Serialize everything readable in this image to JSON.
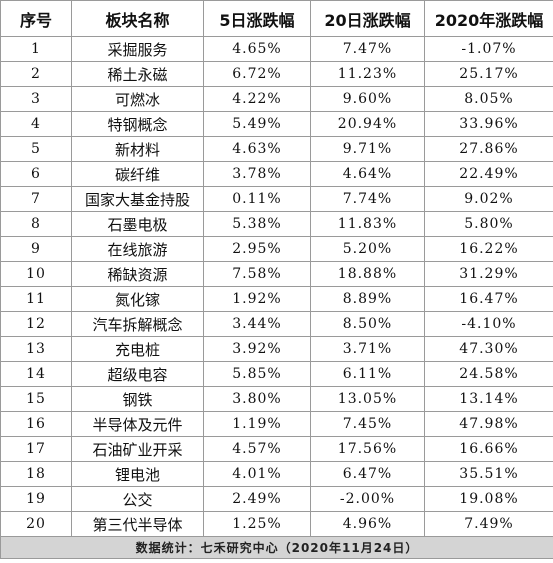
{
  "table": {
    "headers": [
      "序号",
      "板块名称",
      "5日涨跌幅",
      "20日涨跌幅",
      "2020年涨跌幅"
    ],
    "rows": [
      [
        "1",
        "采掘服务",
        "4.65%",
        "7.47%",
        "-1.07%"
      ],
      [
        "2",
        "稀土永磁",
        "6.72%",
        "11.23%",
        "25.17%"
      ],
      [
        "3",
        "可燃冰",
        "4.22%",
        "9.60%",
        "8.05%"
      ],
      [
        "4",
        "特钢概念",
        "5.49%",
        "20.94%",
        "33.96%"
      ],
      [
        "5",
        "新材料",
        "4.63%",
        "9.71%",
        "27.86%"
      ],
      [
        "6",
        "碳纤维",
        "3.78%",
        "4.64%",
        "22.49%"
      ],
      [
        "7",
        "国家大基金持股",
        "0.11%",
        "7.74%",
        "9.02%"
      ],
      [
        "8",
        "石墨电极",
        "5.38%",
        "11.83%",
        "5.80%"
      ],
      [
        "9",
        "在线旅游",
        "2.95%",
        "5.20%",
        "16.22%"
      ],
      [
        "10",
        "稀缺资源",
        "7.58%",
        "18.88%",
        "31.29%"
      ],
      [
        "11",
        "氮化镓",
        "1.92%",
        "8.89%",
        "16.47%"
      ],
      [
        "12",
        "汽车拆解概念",
        "3.44%",
        "8.50%",
        "-4.10%"
      ],
      [
        "13",
        "充电桩",
        "3.92%",
        "3.71%",
        "47.30%"
      ],
      [
        "14",
        "超级电容",
        "5.85%",
        "6.11%",
        "24.58%"
      ],
      [
        "15",
        "钢铁",
        "3.80%",
        "13.05%",
        "13.14%"
      ],
      [
        "16",
        "半导体及元件",
        "1.19%",
        "7.45%",
        "47.98%"
      ],
      [
        "17",
        "石油矿业开采",
        "4.57%",
        "17.56%",
        "16.66%"
      ],
      [
        "18",
        "锂电池",
        "4.01%",
        "6.47%",
        "35.51%"
      ],
      [
        "19",
        "公交",
        "2.49%",
        "-2.00%",
        "19.08%"
      ],
      [
        "20",
        "第三代半导体",
        "1.25%",
        "4.96%",
        "7.49%"
      ]
    ],
    "footer": "数据统计：七禾研究中心（2020年11月24日）"
  }
}
